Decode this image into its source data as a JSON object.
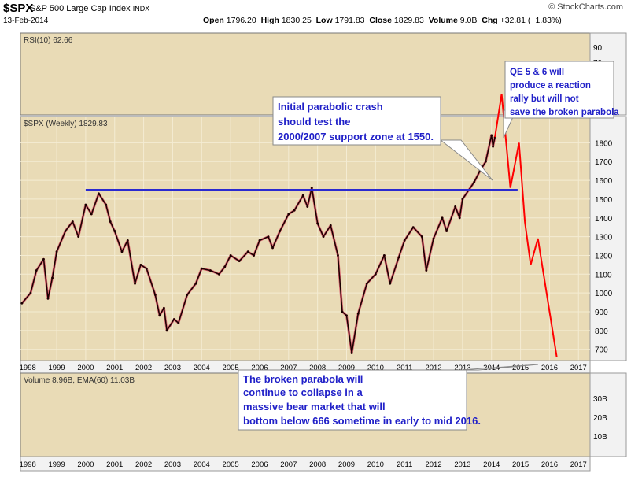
{
  "header": {
    "ticker": "$SPX",
    "name": "S&P 500 Large Cap Index",
    "exchange": "INDX",
    "date": "13-Feb-2014",
    "brand": "© StockCharts.com",
    "quote": {
      "open_label": "Open",
      "open": "1796.20",
      "high_label": "High",
      "high": "1830.25",
      "low_label": "Low",
      "low": "1791.83",
      "close_label": "Close",
      "close": "1829.83",
      "volume_label": "Volume",
      "volume": "9.0B",
      "chg_label": "Chg",
      "chg": "+32.81 (+1.83%)"
    }
  },
  "colors": {
    "panel_bg": "#e9dbb6",
    "grid": "#f4ecd3",
    "axis_bg": "#f2f2f2",
    "price": "#1a0000",
    "down_tick": "#cc0033",
    "support": "#2a2ad0",
    "forecast": "#ff0000",
    "callout_text": "#2020c8"
  },
  "panels": {
    "rsi_label": "RSI(10) 62.66",
    "price_label": "$SPX (Weekly) 1829.83",
    "volume_label": "Volume 8.96B, EMA(60) 11.03B"
  },
  "chart_data": {
    "type": "line",
    "title": "$SPX S&P 500 Large Cap Index INDX",
    "x_tick_labels": [
      "1998",
      "1999",
      "2000",
      "2001",
      "2002",
      "2003",
      "2004",
      "2005",
      "2006",
      "2007",
      "2008",
      "2009",
      "2010",
      "2011",
      "2012",
      "2013",
      "2014",
      "2015",
      "2016",
      "2017"
    ],
    "y_tick_labels": [
      "700",
      "800",
      "900",
      "1000",
      "1100",
      "1200",
      "1300",
      "1400",
      "1500",
      "1600",
      "1700",
      "1800"
    ],
    "rsi_tick_labels": [
      "90",
      "70"
    ],
    "volume_tick_labels": [
      "30B",
      "20B",
      "10B"
    ],
    "ylim": [
      640,
      1940
    ],
    "xlim": [
      1997.75,
      2017.4
    ],
    "scale": "linear",
    "grid": true,
    "series": [
      {
        "name": "$SPX (Weekly)",
        "x": [
          1997.8,
          1998.1,
          1998.3,
          1998.55,
          1998.7,
          1998.85,
          1999.0,
          1999.3,
          1999.55,
          1999.75,
          2000.0,
          2000.2,
          2000.45,
          2000.7,
          2000.85,
          2001.0,
          2001.25,
          2001.45,
          2001.7,
          2001.9,
          2002.1,
          2002.4,
          2002.55,
          2002.7,
          2002.8,
          2003.05,
          2003.2,
          2003.5,
          2003.8,
          2004.0,
          2004.3,
          2004.6,
          2004.8,
          2005.0,
          2005.3,
          2005.6,
          2005.8,
          2006.0,
          2006.3,
          2006.45,
          2006.7,
          2007.0,
          2007.2,
          2007.5,
          2007.65,
          2007.8,
          2008.0,
          2008.2,
          2008.45,
          2008.7,
          2008.85,
          2009.0,
          2009.18,
          2009.4,
          2009.7,
          2010.0,
          2010.3,
          2010.5,
          2010.8,
          2011.0,
          2011.3,
          2011.6,
          2011.75,
          2012.0,
          2012.3,
          2012.45,
          2012.75,
          2012.9,
          2013.0,
          2013.4,
          2013.6,
          2013.8,
          2014.0,
          2014.05,
          2014.12
        ],
        "y": [
          945,
          1000,
          1120,
          1180,
          970,
          1080,
          1220,
          1330,
          1380,
          1300,
          1470,
          1420,
          1530,
          1470,
          1380,
          1330,
          1220,
          1280,
          1050,
          1150,
          1130,
          990,
          880,
          920,
          800,
          860,
          840,
          990,
          1050,
          1130,
          1120,
          1100,
          1140,
          1200,
          1170,
          1220,
          1200,
          1280,
          1300,
          1240,
          1330,
          1420,
          1440,
          1520,
          1460,
          1560,
          1370,
          1300,
          1360,
          1200,
          900,
          880,
          680,
          890,
          1050,
          1100,
          1200,
          1050,
          1190,
          1280,
          1350,
          1300,
          1120,
          1290,
          1400,
          1330,
          1460,
          1400,
          1500,
          1590,
          1650,
          1700,
          1840,
          1780,
          1830
        ]
      },
      {
        "name": "Support line",
        "x": [
          2000.0,
          2014.9
        ],
        "y": [
          1550,
          1550
        ]
      },
      {
        "name": "Forecast",
        "x": [
          2014.12,
          2014.35,
          2014.65,
          2014.95,
          2015.15,
          2015.35,
          2015.6,
          2016.25
        ],
        "y": [
          1830,
          2060,
          1560,
          1800,
          1380,
          1150,
          1290,
          660
        ]
      }
    ],
    "annotations": [
      "Initial parabolic crash should test the 2000/2007 support zone at 1550.",
      "QE 5 & 6 will produce a reaction rally but will not save the broken parabola",
      "The broken parabola will continue to collapse in a massive bear market that will bottom below 666 sometime in early to mid 2016."
    ]
  }
}
